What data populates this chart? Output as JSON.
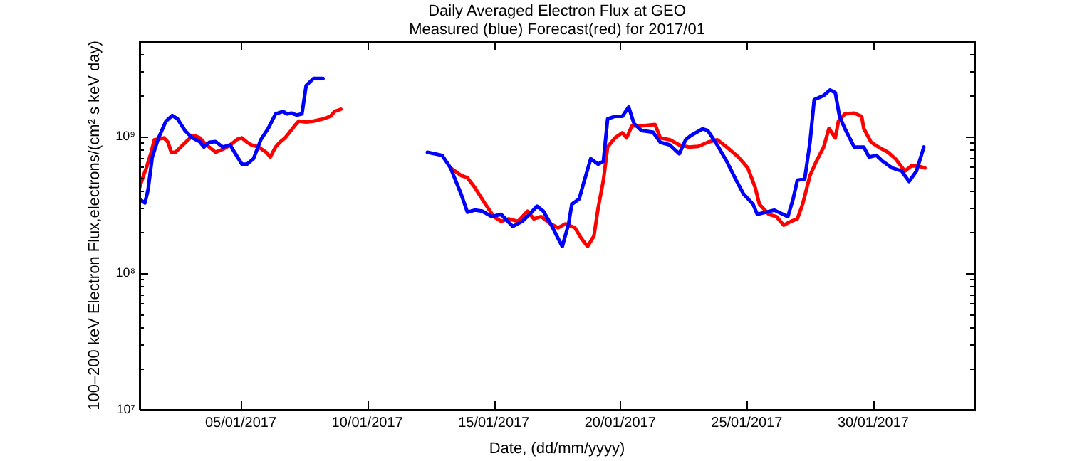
{
  "chart_data": {
    "type": "line",
    "title": "Daily Averaged Electron Flux at GEO",
    "subtitle": "Measured (blue) Forecast(red) for 2017/01",
    "xlabel": "Date, (dd/mm/yyyy)",
    "ylabel": "100–200 keV Electron Flux,electrons/(cm² s keV day)",
    "log": "y",
    "grid": false,
    "legend": false,
    "xlim": [
      "2017-01-01",
      "2017-02-03"
    ],
    "xticks": [
      {
        "value": "2017-01-05",
        "label": "05/01/2017"
      },
      {
        "value": "2017-01-10",
        "label": "10/01/2017"
      },
      {
        "value": "2017-01-15",
        "label": "15/01/2017"
      },
      {
        "value": "2017-01-20",
        "label": "20/01/2017"
      },
      {
        "value": "2017-01-25",
        "label": "25/01/2017"
      },
      {
        "value": "2017-01-30",
        "label": "30/01/2017"
      }
    ],
    "ylim": [
      10000000,
      5000000000
    ],
    "yticks": [
      {
        "value": 10000000,
        "label": "10⁷"
      },
      {
        "value": 20000000,
        "label": null
      },
      {
        "value": 30000000,
        "label": null
      },
      {
        "value": 40000000,
        "label": null
      },
      {
        "value": 50000000,
        "label": null
      },
      {
        "value": 60000000,
        "label": null
      },
      {
        "value": 70000000,
        "label": null
      },
      {
        "value": 80000000,
        "label": null
      },
      {
        "value": 90000000,
        "label": null
      },
      {
        "value": 100000000,
        "label": "10⁸"
      },
      {
        "value": 200000000,
        "label": null
      },
      {
        "value": 300000000,
        "label": null
      },
      {
        "value": 400000000,
        "label": null
      },
      {
        "value": 500000000,
        "label": null
      },
      {
        "value": 600000000,
        "label": null
      },
      {
        "value": 700000000,
        "label": null
      },
      {
        "value": 800000000,
        "label": null
      },
      {
        "value": 900000000,
        "label": null
      },
      {
        "value": 1000000000,
        "label": "10⁹"
      },
      {
        "value": 2000000000,
        "label": null
      },
      {
        "value": 3000000000,
        "label": null
      },
      {
        "value": 4000000000,
        "label": null
      }
    ],
    "series": [
      {
        "color": "#0000ff",
        "x": [
          "2017-01-01T00:00",
          "2017-01-01T05:00",
          "2017-01-01T08:00",
          "2017-01-01T12:00",
          "2017-01-01T18:00",
          "2017-01-02T01:00",
          "2017-01-02T07:00",
          "2017-01-02T12:00",
          "2017-01-02T19:00",
          "2017-01-03T02:00",
          "2017-01-03T09:00",
          "2017-01-03T13:00",
          "2017-01-03T18:00",
          "2017-01-04T00:00",
          "2017-01-04T07:00",
          "2017-01-04T14:00",
          "2017-01-04T18:00",
          "2017-01-05T01:00",
          "2017-01-05T06:00",
          "2017-01-05T12:00",
          "2017-01-05T19:00",
          "2017-01-06T02:00",
          "2017-01-06T09:00",
          "2017-01-06T16:00",
          "2017-01-06T20:00",
          "2017-01-07T00:00",
          "2017-01-07T05:00",
          "2017-01-07T10:00",
          "2017-01-07T14:00",
          "2017-01-07T21:00",
          "2017-01-08T06:00",
          "2017-01-10T00:00",
          "2017-01-12T09:00",
          "2017-01-12T23:00",
          "2017-01-13T07:00",
          "2017-01-13T17:00",
          "2017-01-13T23:00",
          "2017-01-14T06:00",
          "2017-01-14T13:00",
          "2017-01-14T22:00",
          "2017-01-15T07:00",
          "2017-01-15T18:00",
          "2017-01-16T03:00",
          "2017-01-16T10:00",
          "2017-01-16T17:00",
          "2017-01-16T23:00",
          "2017-01-17T06:00",
          "2017-01-17T13:00",
          "2017-01-17T17:00",
          "2017-01-17T23:00",
          "2017-01-18T02:00",
          "2017-01-18T09:00",
          "2017-01-18T14:00",
          "2017-01-18T20:00",
          "2017-01-19T03:00",
          "2017-01-19T08:00",
          "2017-01-19T12:00",
          "2017-01-19T19:00",
          "2017-01-20T02:00",
          "2017-01-20T08:00",
          "2017-01-20T13:00",
          "2017-01-20T20:00",
          "2017-01-21T07:00",
          "2017-01-21T14:00",
          "2017-01-21T23:00",
          "2017-01-22T08:00",
          "2017-01-22T14:00",
          "2017-01-22T19:00",
          "2017-01-23T06:00",
          "2017-01-23T11:00",
          "2017-01-23T20:00",
          "2017-01-24T05:00",
          "2017-01-24T14:00",
          "2017-01-24T21:00",
          "2017-01-25T06:00",
          "2017-01-25T10:00",
          "2017-01-26T02:00",
          "2017-01-26T15:00",
          "2017-01-26T20:00",
          "2017-01-27T00:00",
          "2017-01-27T07:00",
          "2017-01-27T12:00",
          "2017-01-27T16:00",
          "2017-01-28T01:00",
          "2017-01-28T07:00",
          "2017-01-28T12:00",
          "2017-01-28T16:00",
          "2017-01-28T21:00",
          "2017-01-29T06:00",
          "2017-01-29T15:00",
          "2017-01-29T20:00",
          "2017-01-30T03:00",
          "2017-01-30T09:00",
          "2017-01-30T18:00",
          "2017-01-31T03:00",
          "2017-01-31T10:00",
          "2017-01-31T17:00",
          "2017-02-01T00:00"
        ],
        "values": [
          348000000,
          327000000,
          408000000,
          710000000,
          980000000,
          1300000000,
          1430000000,
          1350000000,
          1110000000,
          980000000,
          920000000,
          840000000,
          910000000,
          920000000,
          840000000,
          870000000,
          770000000,
          630000000,
          630000000,
          690000000,
          950000000,
          1150000000,
          1470000000,
          1530000000,
          1470000000,
          1490000000,
          1440000000,
          1470000000,
          2370000000,
          2670000000,
          2670000000,
          null,
          770000000,
          730000000,
          590000000,
          380000000,
          280000000,
          290000000,
          285000000,
          260000000,
          270000000,
          220000000,
          240000000,
          270000000,
          310000000,
          285000000,
          230000000,
          180000000,
          157000000,
          230000000,
          320000000,
          350000000,
          480000000,
          690000000,
          630000000,
          660000000,
          1350000000,
          1410000000,
          1410000000,
          1650000000,
          1250000000,
          1110000000,
          1080000000,
          910000000,
          870000000,
          750000000,
          950000000,
          1020000000,
          1140000000,
          1110000000,
          870000000,
          660000000,
          480000000,
          380000000,
          320000000,
          270000000,
          290000000,
          260000000,
          350000000,
          480000000,
          490000000,
          910000000,
          1870000000,
          2000000000,
          2200000000,
          2100000000,
          1410000000,
          1150000000,
          840000000,
          840000000,
          710000000,
          730000000,
          660000000,
          590000000,
          560000000,
          470000000,
          560000000,
          840000000
        ]
      },
      {
        "color": "#ff0000",
        "x": [
          "2017-01-01T00:00",
          "2017-01-01T03:00",
          "2017-01-01T07:00",
          "2017-01-01T11:00",
          "2017-01-01T14:00",
          "2017-01-01T18:00",
          "2017-01-01T23:00",
          "2017-01-02T03:00",
          "2017-01-02T06:00",
          "2017-01-02T10:00",
          "2017-01-02T17:00",
          "2017-01-03T00:00",
          "2017-01-03T04:00",
          "2017-01-03T09:00",
          "2017-01-03T13:00",
          "2017-01-03T18:00",
          "2017-01-04T00:00",
          "2017-01-04T07:00",
          "2017-01-04T14:00",
          "2017-01-04T21:00",
          "2017-01-05T01:00",
          "2017-01-05T06:00",
          "2017-01-05T10:00",
          "2017-01-05T17:00",
          "2017-01-06T00:00",
          "2017-01-06T04:00",
          "2017-01-06T09:00",
          "2017-01-06T13:00",
          "2017-01-06T18:00",
          "2017-01-06T22:00",
          "2017-01-07T03:00",
          "2017-01-07T07:00",
          "2017-01-07T14:00",
          "2017-01-07T21:00",
          "2017-01-08T06:00",
          "2017-01-08T13:00",
          "2017-01-08T17:00",
          "2017-01-08T23:00",
          "2017-01-10T00:00",
          "2017-01-13T07:00",
          "2017-01-13T17:00",
          "2017-01-13T23:00",
          "2017-01-14T06:00",
          "2017-01-14T15:00",
          "2017-01-15T00:00",
          "2017-01-15T07:00",
          "2017-01-15T14:00",
          "2017-01-15T23:00",
          "2017-01-16T08:00",
          "2017-01-16T14:00",
          "2017-01-16T21:00",
          "2017-01-17T06:00",
          "2017-01-17T13:00",
          "2017-01-17T20:00",
          "2017-01-18T05:00",
          "2017-01-18T11:00",
          "2017-01-18T17:00",
          "2017-01-18T23:00",
          "2017-01-19T03:00",
          "2017-01-19T08:00",
          "2017-01-19T12:00",
          "2017-01-19T19:00",
          "2017-01-20T02:00",
          "2017-01-20T06:00",
          "2017-01-20T11:00",
          "2017-01-20T20:00",
          "2017-01-21T09:00",
          "2017-01-21T14:00",
          "2017-01-21T23:00",
          "2017-01-22T08:00",
          "2017-01-22T17:00",
          "2017-01-23T02:00",
          "2017-01-23T11:00",
          "2017-01-23T20:00",
          "2017-01-24T05:00",
          "2017-01-24T16:00",
          "2017-01-25T01:00",
          "2017-01-25T08:00",
          "2017-01-25T12:00",
          "2017-01-25T21:00",
          "2017-01-26T04:00",
          "2017-01-26T11:00",
          "2017-01-26T18:00",
          "2017-01-27T00:00",
          "2017-01-27T05:00",
          "2017-01-27T12:00",
          "2017-01-27T18:00",
          "2017-01-28T01:00",
          "2017-01-28T06:00",
          "2017-01-28T12:00",
          "2017-01-28T15:00",
          "2017-01-28T21:00",
          "2017-01-29T06:00",
          "2017-01-29T13:00",
          "2017-01-29T15:00",
          "2017-01-29T22:00",
          "2017-01-30T05:00",
          "2017-01-30T14:00",
          "2017-01-30T21:00",
          "2017-01-31T06:00",
          "2017-01-31T12:00",
          "2017-01-31T19:00",
          "2017-02-01T01:00"
        ],
        "values": [
          425000000,
          500000000,
          610000000,
          770000000,
          950000000,
          960000000,
          980000000,
          910000000,
          770000000,
          770000000,
          870000000,
          980000000,
          1020000000,
          980000000,
          910000000,
          840000000,
          770000000,
          810000000,
          870000000,
          960000000,
          980000000,
          910000000,
          870000000,
          840000000,
          770000000,
          710000000,
          840000000,
          910000000,
          980000000,
          1070000000,
          1200000000,
          1300000000,
          1280000000,
          1300000000,
          1350000000,
          1410000000,
          1530000000,
          1590000000,
          null,
          590000000,
          520000000,
          500000000,
          425000000,
          330000000,
          260000000,
          240000000,
          250000000,
          240000000,
          285000000,
          250000000,
          260000000,
          230000000,
          215000000,
          230000000,
          215000000,
          180000000,
          157000000,
          187000000,
          300000000,
          480000000,
          840000000,
          980000000,
          1070000000,
          980000000,
          1200000000,
          1200000000,
          1230000000,
          980000000,
          950000000,
          870000000,
          840000000,
          850000000,
          910000000,
          950000000,
          840000000,
          710000000,
          590000000,
          425000000,
          320000000,
          270000000,
          260000000,
          225000000,
          240000000,
          250000000,
          320000000,
          520000000,
          660000000,
          840000000,
          1150000000,
          980000000,
          1300000000,
          1470000000,
          1490000000,
          1410000000,
          1150000000,
          910000000,
          840000000,
          770000000,
          690000000,
          560000000,
          610000000,
          610000000,
          590000000
        ]
      }
    ]
  }
}
